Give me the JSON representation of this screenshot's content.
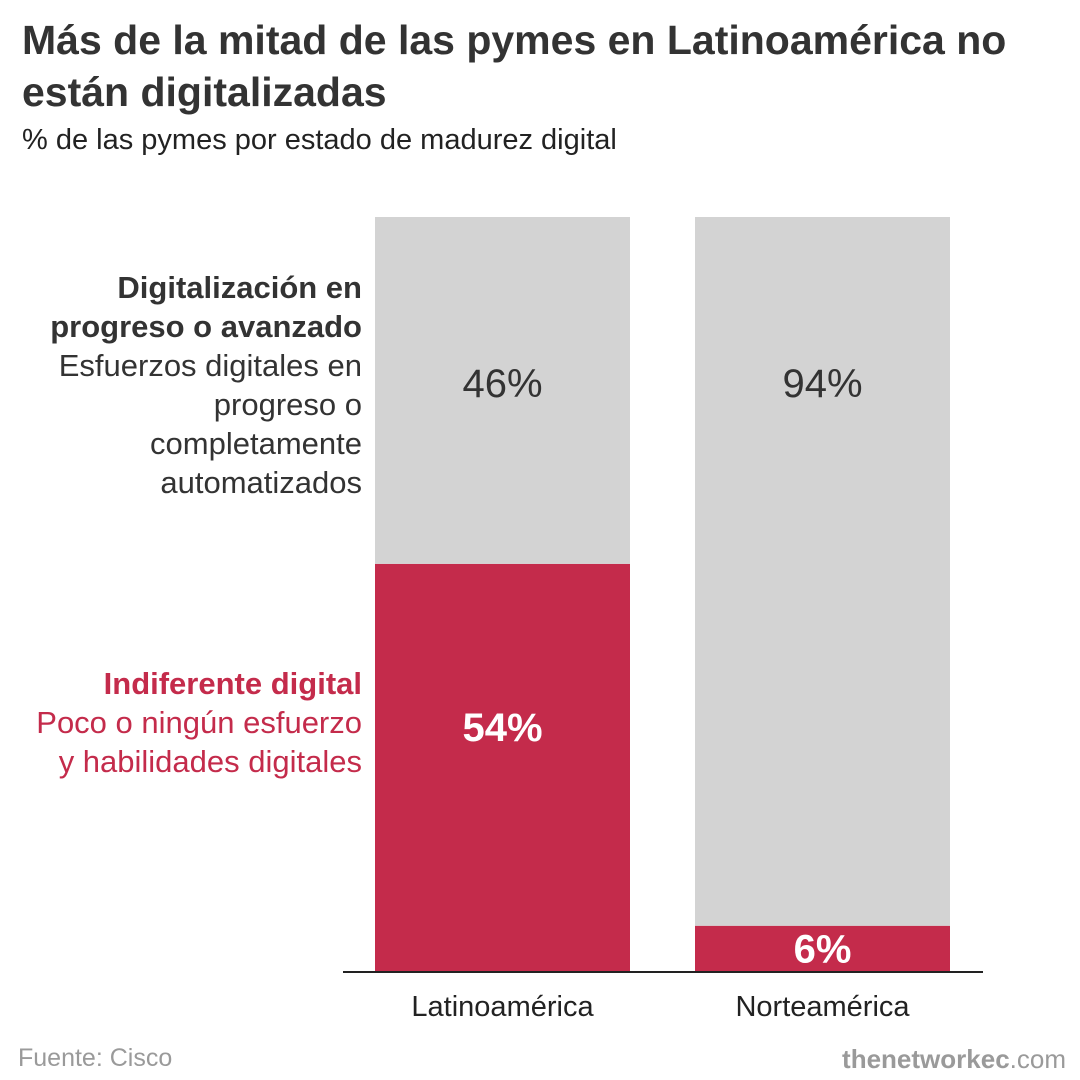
{
  "title": "Más de la mitad de las pymes en Latinoamérica no están digitalizadas",
  "subtitle": "% de las pymes por estado de madurez digital",
  "legend": {
    "advanced": {
      "title": "Digitalización en progreso o avanzado",
      "description": "Esfuerzos digitales en progreso o completamente automatizados",
      "color": "#d3d3d3"
    },
    "indifferent": {
      "title": "Indiferente digital",
      "description": "Poco o ningún esfuerzo y habilidades digitales",
      "color": "#c42b4b"
    }
  },
  "footer": {
    "source": "Fuente: Cisco",
    "brand_bold": "thenetworkec",
    "brand_suffix": ".com"
  },
  "chart_data": {
    "type": "bar",
    "stacked": true,
    "categories": [
      "Latinoamérica",
      "Norteamérica"
    ],
    "series": [
      {
        "name": "Indiferente digital",
        "values": [
          54,
          6
        ],
        "labels": [
          "54%",
          "6%"
        ],
        "color": "#c42b4b",
        "label_color": "#ffffff"
      },
      {
        "name": "Digitalización en progreso o avanzado",
        "values": [
          46,
          94
        ],
        "labels": [
          "46%",
          "94%"
        ],
        "color": "#d3d3d3",
        "label_color": "#333333"
      }
    ],
    "title": "Más de la mitad de las pymes en Latinoamérica no están digitalizadas",
    "subtitle": "% de las pymes por estado de madurez digital",
    "xlabel": "",
    "ylabel": "",
    "ylim": [
      0,
      100
    ],
    "grid": false
  }
}
